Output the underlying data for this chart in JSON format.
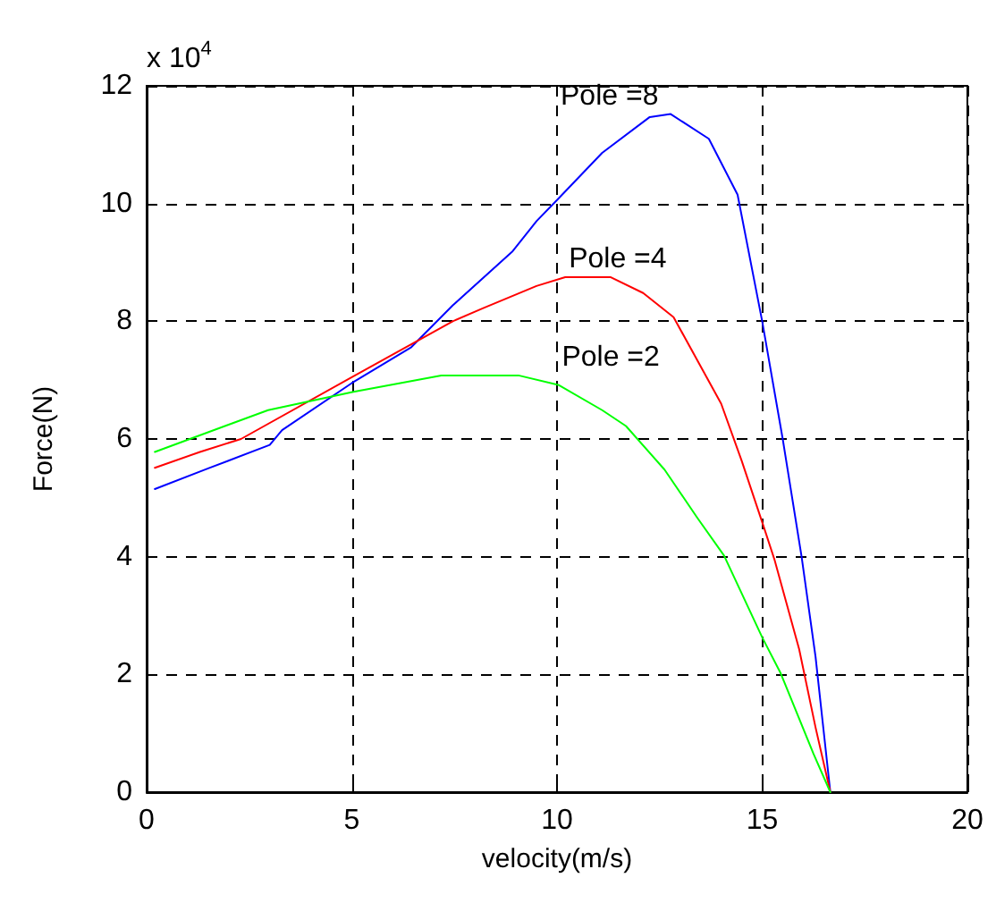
{
  "chart_data": {
    "type": "line",
    "xlabel": "velocity(m/s)",
    "ylabel": "Force(N)",
    "xlim": [
      0,
      20
    ],
    "xticks": [
      0,
      5,
      10,
      15,
      20
    ],
    "ylim": [
      0,
      12
    ],
    "yticks": [
      0,
      2,
      4,
      6,
      8,
      10,
      12
    ],
    "grid": true,
    "marker": "none",
    "line_style": "solid",
    "annotations": [
      "x 10$^{4}$"
    ],
    "series": [
      {
        "name": "Pole =8",
        "color": "#0000ff",
        "x": [
          0.2,
          1.5,
          3,
          3.3,
          5,
          6.45,
          7.46,
          8.92,
          9.5,
          10,
          11.1,
          12.26,
          12.77,
          13.7,
          14.4,
          15,
          15.5,
          15.96,
          16.3,
          16.66
        ],
        "values": [
          5.15,
          5.5,
          5.9,
          6.15,
          6.95,
          7.56,
          8.27,
          9.19,
          9.7,
          10.06,
          10.86,
          11.47,
          11.52,
          11.1,
          10.15,
          8.0,
          6.0,
          4.0,
          2.3,
          0
        ]
      },
      {
        "name": "Pole =4",
        "color": "#ff0000",
        "x": [
          0.2,
          1.3,
          2.3,
          5,
          7.46,
          8.19,
          9.5,
          10.2,
          11.3,
          12.1,
          12.84,
          14.0,
          14.5,
          15.06,
          15.3,
          15.9,
          16.3,
          16.66
        ],
        "values": [
          5.51,
          5.78,
          6.0,
          7.05,
          8.0,
          8.22,
          8.6,
          8.75,
          8.75,
          8.48,
          8.07,
          6.6,
          5.63,
          4.46,
          3.95,
          2.43,
          1.1,
          0
        ]
      },
      {
        "name": "Pole =2",
        "color": "#00ff00",
        "x": [
          0.2,
          2.96,
          5.04,
          7.18,
          9.06,
          10.03,
          11.1,
          11.68,
          12.62,
          13.42,
          14.07,
          15.0,
          15.45,
          16.25,
          16.66
        ],
        "values": [
          5.78,
          6.49,
          6.8,
          7.08,
          7.08,
          6.92,
          6.49,
          6.22,
          5.48,
          4.66,
          4.02,
          2.63,
          2.02,
          0.65,
          0
        ]
      }
    ]
  }
}
